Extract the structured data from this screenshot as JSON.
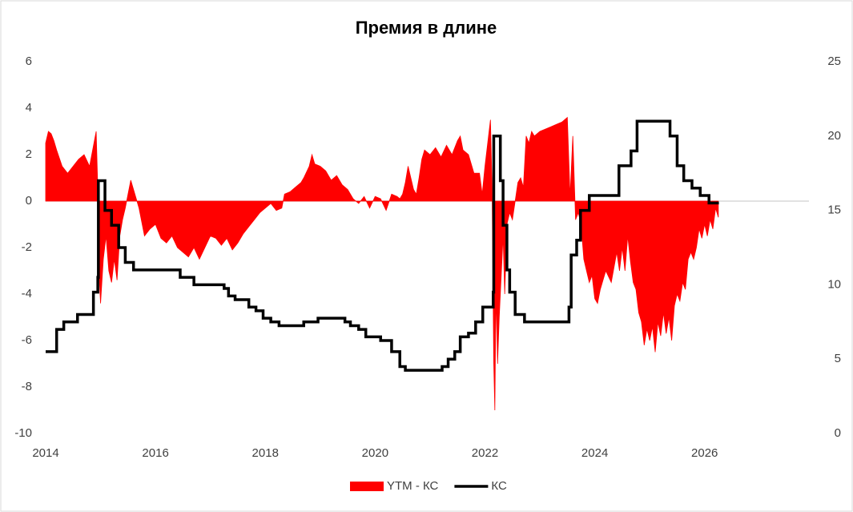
{
  "chart_data": {
    "type": "area-line",
    "title": "Премия в длине",
    "xlim": [
      2014,
      2027.9
    ],
    "xticks": [
      2014,
      2016,
      2018,
      2020,
      2022,
      2024,
      2026
    ],
    "ylim": [
      -10,
      6
    ],
    "yticks": [
      -10,
      -8,
      -6,
      -4,
      -2,
      0,
      2,
      4,
      6
    ],
    "y2lim": [
      0,
      25
    ],
    "y2ticks": [
      0,
      5,
      10,
      15,
      20,
      25
    ],
    "legend": "bottom",
    "series": [
      {
        "name": "YTM - КС",
        "type": "area",
        "color": "#ff0000",
        "x": [
          2014.0,
          2014.05,
          2014.1,
          2014.15,
          2014.2,
          2014.3,
          2014.4,
          2014.5,
          2014.6,
          2014.7,
          2014.8,
          2014.88,
          2014.92,
          2014.95,
          2014.97,
          2015.0,
          2015.05,
          2015.1,
          2015.15,
          2015.2,
          2015.25,
          2015.3,
          2015.35,
          2015.4,
          2015.45,
          2015.5,
          2015.55,
          2015.6,
          2015.7,
          2015.8,
          2015.9,
          2016.0,
          2016.1,
          2016.2,
          2016.3,
          2016.4,
          2016.5,
          2016.6,
          2016.7,
          2016.8,
          2016.9,
          2017.0,
          2017.1,
          2017.2,
          2017.3,
          2017.4,
          2017.5,
          2017.6,
          2017.7,
          2017.8,
          2017.9,
          2018.0,
          2018.1,
          2018.2,
          2018.3,
          2018.35,
          2018.45,
          2018.55,
          2018.65,
          2018.7,
          2018.8,
          2018.85,
          2018.9,
          2019.0,
          2019.1,
          2019.2,
          2019.3,
          2019.4,
          2019.5,
          2019.6,
          2019.7,
          2019.8,
          2019.9,
          2020.0,
          2020.1,
          2020.2,
          2020.3,
          2020.4,
          2020.45,
          2020.5,
          2020.55,
          2020.6,
          2020.65,
          2020.7,
          2020.75,
          2020.8,
          2020.85,
          2020.9,
          2021.0,
          2021.1,
          2021.2,
          2021.3,
          2021.4,
          2021.5,
          2021.55,
          2021.6,
          2021.7,
          2021.8,
          2021.9,
          2021.95,
          2022.0,
          2022.05,
          2022.1,
          2022.13,
          2022.16,
          2022.18,
          2022.2,
          2022.23,
          2022.26,
          2022.3,
          2022.33,
          2022.36,
          2022.4,
          2022.45,
          2022.5,
          2022.55,
          2022.6,
          2022.65,
          2022.7,
          2022.75,
          2022.8,
          2022.85,
          2022.9,
          2023.0,
          2023.1,
          2023.2,
          2023.3,
          2023.4,
          2023.5,
          2023.55,
          2023.6,
          2023.65,
          2023.7,
          2023.75,
          2023.8,
          2023.85,
          2023.9,
          2023.95,
          2024.0,
          2024.05,
          2024.1,
          2024.2,
          2024.3,
          2024.4,
          2024.45,
          2024.5,
          2024.55,
          2024.6,
          2024.65,
          2024.7,
          2024.75,
          2024.8,
          2024.85,
          2024.9,
          2024.95,
          2025.0,
          2025.05,
          2025.1,
          2025.15,
          2025.2,
          2025.25,
          2025.3,
          2025.35,
          2025.4,
          2025.45,
          2025.5,
          2025.55,
          2025.6,
          2025.65,
          2025.7,
          2025.75,
          2025.8,
          2025.85,
          2025.9,
          2025.95,
          2026.0,
          2026.05,
          2026.1,
          2026.15,
          2026.2,
          2026.25
        ],
        "values": [
          2.5,
          3,
          2.9,
          2.6,
          2.2,
          1.5,
          1.2,
          1.5,
          1.8,
          2.0,
          1.5,
          2.5,
          3.0,
          0.5,
          -3,
          -4.4,
          -2.5,
          -1.5,
          -3,
          -3.5,
          -2.5,
          -3.4,
          -1.5,
          -0.8,
          -0.3,
          0.3,
          0.9,
          0.5,
          -0.3,
          -1.5,
          -1.2,
          -1.0,
          -1.6,
          -1.8,
          -1.5,
          -2.0,
          -2.2,
          -2.4,
          -2.0,
          -2.5,
          -2.0,
          -1.5,
          -1.6,
          -1.9,
          -1.6,
          -2.1,
          -1.8,
          -1.4,
          -1.1,
          -0.8,
          -0.5,
          -0.3,
          -0.1,
          -0.4,
          -0.3,
          0.3,
          0.4,
          0.6,
          0.8,
          1.0,
          1.5,
          2.0,
          1.6,
          1.5,
          1.3,
          0.9,
          1.1,
          0.7,
          0.5,
          0.1,
          -0.1,
          0.2,
          -0.3,
          0.2,
          0.1,
          -0.4,
          0.3,
          0.2,
          0.1,
          0.3,
          0.8,
          1.5,
          1.0,
          0.5,
          0.3,
          1.0,
          1.8,
          2.2,
          2.0,
          2.3,
          1.9,
          2.4,
          2.0,
          2.6,
          2.8,
          2.2,
          2.0,
          1.2,
          1.2,
          0.3,
          1.5,
          2.5,
          3.5,
          0.5,
          -7,
          -9,
          -4,
          -7,
          -5,
          -3,
          -1.5,
          -4,
          -1,
          -0.5,
          -0.8,
          0,
          0.8,
          1.0,
          0.6,
          2.8,
          2.5,
          3.0,
          2.8,
          3.0,
          3.1,
          3.2,
          3.3,
          3.4,
          3.6,
          0.2,
          2.8,
          -0.8,
          -0.5,
          -1,
          -2.5,
          -3.0,
          -3.5,
          -3.2,
          -4.2,
          -4.4,
          -3.8,
          -3.0,
          -3.5,
          -2.2,
          -3.0,
          -2.0,
          -3.0,
          -1.5,
          -2.6,
          -3.5,
          -3.8,
          -4.8,
          -5.2,
          -6.2,
          -5.5,
          -6.0,
          -5.4,
          -6.5,
          -5.2,
          -5.8,
          -4.8,
          -5.7,
          -5.0,
          -6.0,
          -4.5,
          -4.0,
          -4.3,
          -3.5,
          -3.8,
          -2.5,
          -2.2,
          -2.5,
          -2.0,
          -1.2,
          -1.6,
          -1.0,
          -1.5,
          -0.8,
          -1.2,
          -0.3,
          -0.7
        ]
      },
      {
        "name": "КС",
        "type": "line",
        "step": true,
        "axis": "y2",
        "color": "#000000",
        "x": [
          2014.0,
          2014.2,
          2014.33,
          2014.58,
          2014.87,
          2014.95,
          2014.96,
          2015.08,
          2015.2,
          2015.33,
          2015.45,
          2015.6,
          2016.45,
          2016.7,
          2017.25,
          2017.33,
          2017.45,
          2017.7,
          2017.83,
          2017.96,
          2018.1,
          2018.25,
          2018.7,
          2018.96,
          2019.45,
          2019.55,
          2019.7,
          2019.83,
          2020.1,
          2020.3,
          2020.45,
          2020.55,
          2021.22,
          2021.33,
          2021.45,
          2021.55,
          2021.7,
          2021.83,
          2021.96,
          2022.15,
          2022.16,
          2022.28,
          2022.33,
          2022.4,
          2022.45,
          2022.55,
          2022.72,
          2023.53,
          2023.57,
          2023.67,
          2023.74,
          2023.9,
          2024.44,
          2024.66,
          2024.77,
          2025.37,
          2025.5,
          2025.62,
          2025.77,
          2025.92,
          2026.08,
          2026.26
        ],
        "values": [
          5.5,
          7,
          7.5,
          8,
          9.5,
          10.5,
          17,
          15,
          14,
          12.5,
          11.5,
          11,
          10.5,
          10,
          9.75,
          9.25,
          9,
          8.5,
          8.25,
          7.75,
          7.5,
          7.25,
          7.5,
          7.75,
          7.5,
          7.25,
          7,
          6.5,
          6.25,
          5.5,
          4.5,
          4.25,
          4.5,
          5,
          5.5,
          6.5,
          6.75,
          7.5,
          8.5,
          9.5,
          20,
          17,
          14,
          11,
          9.5,
          8,
          7.5,
          8.5,
          12,
          13,
          15,
          16,
          18,
          19,
          21,
          20,
          18,
          17,
          16.5,
          16,
          15.5,
          15.5
        ]
      }
    ]
  }
}
